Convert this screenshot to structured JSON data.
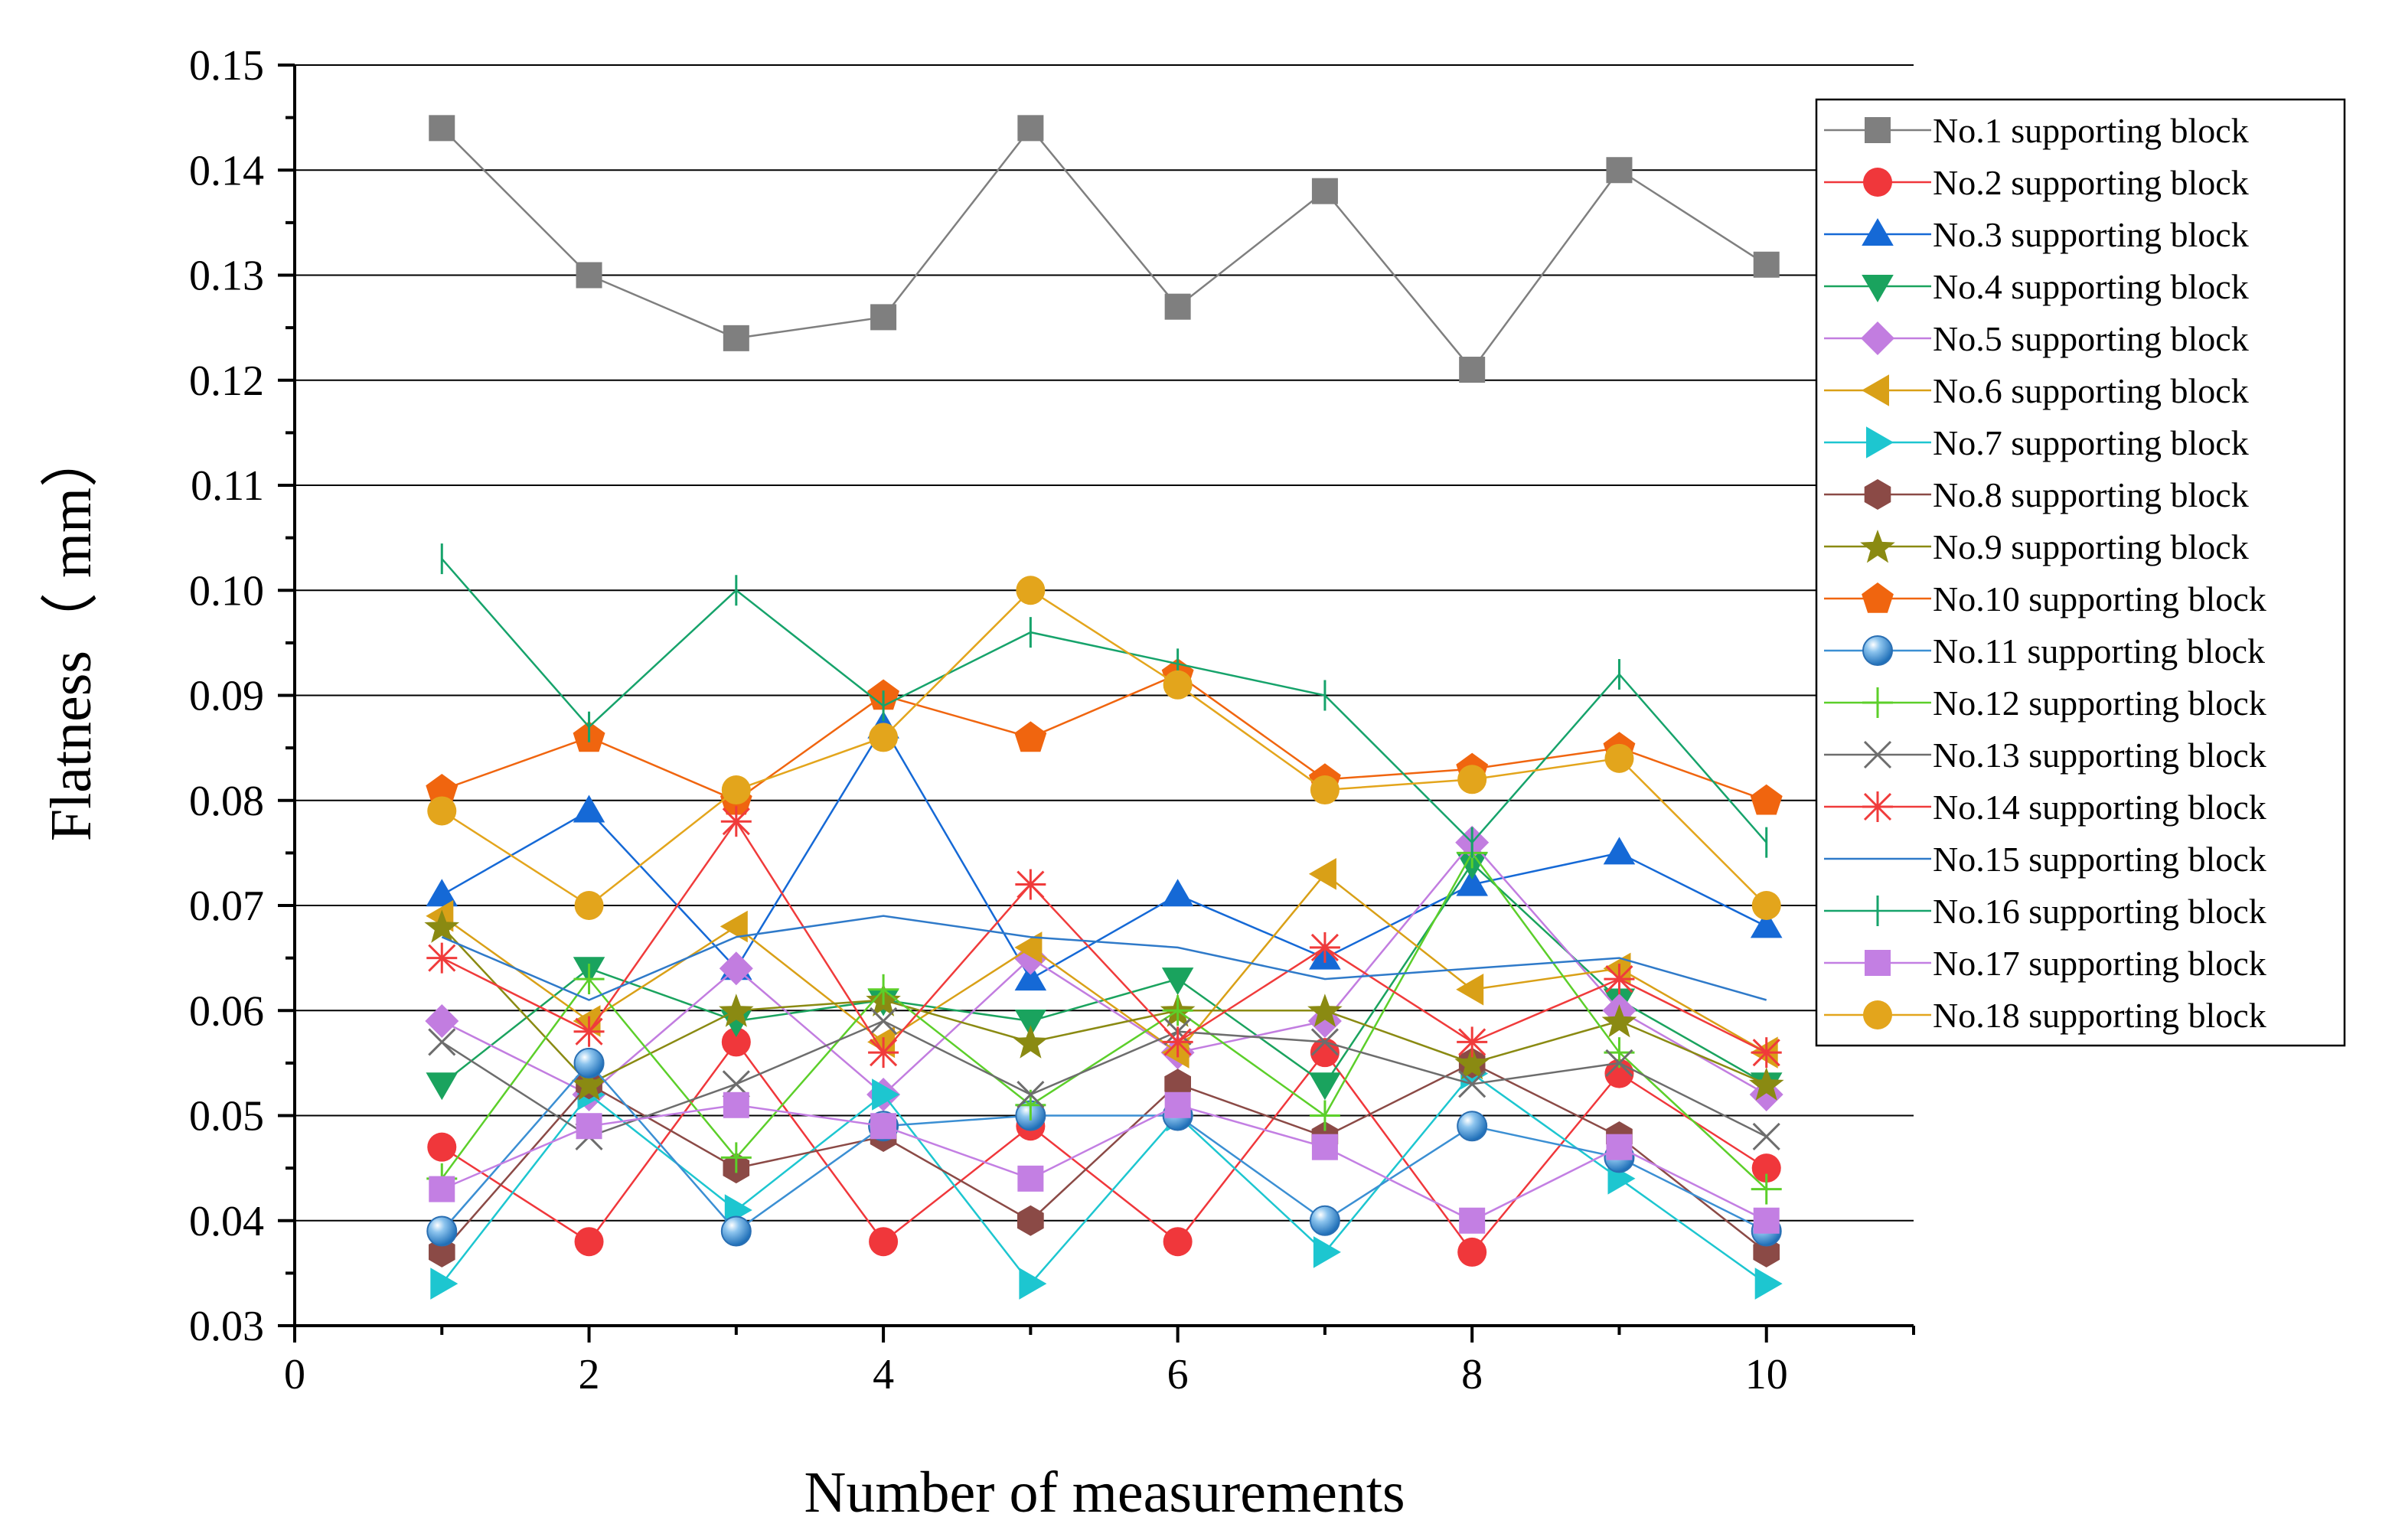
{
  "chart_data": {
    "type": "line",
    "title": "",
    "xlabel": "Number of measurements",
    "ylabel": "Flatness（ mm）",
    "xlim": [
      0,
      11
    ],
    "ylim": [
      0.03,
      0.15
    ],
    "xticks": [
      "0",
      "2",
      "4",
      "6",
      "8",
      "10"
    ],
    "yticks": [
      "0.03",
      "0.04",
      "0.05",
      "0.06",
      "0.07",
      "0.08",
      "0.09",
      "0.10",
      "0.11",
      "0.12",
      "0.13",
      "0.14",
      "0.15"
    ],
    "grid": "horizontal",
    "legend_position": "top-right",
    "x": [
      1,
      2,
      3,
      4,
      5,
      6,
      7,
      8,
      9,
      10
    ],
    "series": [
      {
        "name": "No.1 supporting block",
        "marker": "square",
        "color": "#7f7f7f",
        "values": [
          0.144,
          0.13,
          0.124,
          0.126,
          0.144,
          0.127,
          0.138,
          0.121,
          0.14,
          0.131
        ]
      },
      {
        "name": "No.2 supporting block",
        "marker": "circle",
        "color": "#f0373b",
        "values": [
          0.047,
          0.038,
          0.057,
          0.038,
          0.049,
          0.038,
          0.056,
          0.037,
          0.054,
          0.045
        ]
      },
      {
        "name": "No.3 supporting block",
        "marker": "triangle-up",
        "color": "#1569d6",
        "values": [
          0.071,
          0.079,
          0.064,
          0.087,
          0.063,
          0.071,
          0.065,
          0.072,
          0.075,
          0.068
        ]
      },
      {
        "name": "No.4 supporting block",
        "marker": "triangle-down",
        "color": "#1aa35e",
        "values": [
          0.053,
          0.064,
          0.059,
          0.061,
          0.059,
          0.063,
          0.053,
          0.074,
          0.061,
          0.053
        ]
      },
      {
        "name": "No.5 supporting block",
        "marker": "diamond",
        "color": "#c27de0",
        "values": [
          0.059,
          0.052,
          0.064,
          0.052,
          0.065,
          0.056,
          0.059,
          0.076,
          0.06,
          0.052
        ]
      },
      {
        "name": "No.6 supporting block",
        "marker": "triangle-left",
        "color": "#d9a017",
        "values": [
          0.069,
          0.059,
          0.068,
          0.057,
          0.066,
          0.056,
          0.073,
          0.062,
          0.064,
          0.056
        ]
      },
      {
        "name": "No.7 supporting block",
        "marker": "triangle-right",
        "color": "#1dc6d0",
        "values": [
          0.034,
          0.052,
          0.041,
          0.052,
          0.034,
          0.05,
          0.037,
          0.054,
          0.044,
          0.034
        ]
      },
      {
        "name": "No.8 supporting block",
        "marker": "hexagon",
        "color": "#8b4a46",
        "values": [
          0.037,
          0.053,
          0.045,
          0.048,
          0.04,
          0.053,
          0.048,
          0.055,
          0.048,
          0.037
        ]
      },
      {
        "name": "No.9 supporting block",
        "marker": "star",
        "color": "#8a8a12",
        "values": [
          0.068,
          0.053,
          0.06,
          0.061,
          0.057,
          0.06,
          0.06,
          0.055,
          0.059,
          0.053
        ]
      },
      {
        "name": "No.10 supporting block",
        "marker": "pentagon",
        "color": "#f0650f",
        "values": [
          0.081,
          0.086,
          0.08,
          0.09,
          0.086,
          0.092,
          0.082,
          0.083,
          0.085,
          0.08
        ]
      },
      {
        "name": "No.11 supporting block",
        "marker": "sphere",
        "color": "#3b8fd3",
        "values": [
          0.039,
          0.055,
          0.039,
          0.049,
          0.05,
          0.05,
          0.04,
          0.049,
          0.046,
          0.039
        ]
      },
      {
        "name": "No.12 supporting block",
        "marker": "plus",
        "color": "#5ccf2a",
        "values": [
          0.044,
          0.063,
          0.046,
          0.062,
          0.051,
          0.06,
          0.05,
          0.075,
          0.056,
          0.043
        ]
      },
      {
        "name": "No.13 supporting block",
        "marker": "x",
        "color": "#6d6d6d",
        "values": [
          0.057,
          0.048,
          0.053,
          0.059,
          0.052,
          0.058,
          0.057,
          0.053,
          0.055,
          0.048
        ]
      },
      {
        "name": "No.14 supporting block",
        "marker": "asterisk",
        "color": "#f03b3b",
        "values": [
          0.065,
          0.058,
          0.078,
          0.056,
          0.072,
          0.057,
          0.066,
          0.057,
          0.063,
          0.056
        ]
      },
      {
        "name": "No.15 supporting block",
        "marker": "none",
        "color": "#2f7ac9",
        "values": [
          0.067,
          0.061,
          0.067,
          0.069,
          0.067,
          0.066,
          0.063,
          0.064,
          0.065,
          0.061
        ]
      },
      {
        "name": "No.16 supporting block",
        "marker": "bar",
        "color": "#16a36b",
        "values": [
          0.103,
          0.087,
          0.1,
          0.089,
          0.096,
          0.093,
          0.09,
          0.076,
          0.092,
          0.076
        ]
      },
      {
        "name": "No.17 supporting block",
        "marker": "square",
        "color": "#c37fe3",
        "values": [
          0.043,
          0.049,
          0.051,
          0.049,
          0.044,
          0.051,
          0.047,
          0.04,
          0.047,
          0.04
        ]
      },
      {
        "name": "No.18 supporting block",
        "marker": "circle",
        "color": "#e3a51c",
        "values": [
          0.079,
          0.07,
          0.081,
          0.086,
          0.1,
          0.091,
          0.081,
          0.082,
          0.084,
          0.07
        ]
      }
    ]
  }
}
